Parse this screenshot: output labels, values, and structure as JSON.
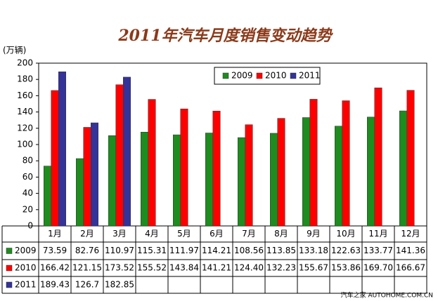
{
  "chart_data": {
    "type": "bar",
    "title": "2011年汽车月度销售变动趋势",
    "y_label": "(万辆)",
    "categories": [
      "1月",
      "2月",
      "3月",
      "4月",
      "5月",
      "6月",
      "7月",
      "8月",
      "9月",
      "10月",
      "11月",
      "12月"
    ],
    "series": [
      {
        "name": "2009",
        "color": "#1e8c1e",
        "values": [
          73.59,
          82.76,
          110.97,
          115.31,
          111.97,
          114.21,
          108.56,
          113.85,
          133.18,
          122.63,
          133.77,
          141.36
        ],
        "value_labels": [
          "73.59",
          "82.76",
          "110.97",
          "115.31",
          "111.97",
          "114.21",
          "108.56",
          "113.85",
          "133.18",
          "122.63",
          "133.77",
          "141.36"
        ]
      },
      {
        "name": "2010",
        "color": "#ff0000",
        "values": [
          166.42,
          121.15,
          173.52,
          155.52,
          143.84,
          141.21,
          124.4,
          132.23,
          155.67,
          153.86,
          169.7,
          166.67
        ],
        "value_labels": [
          "166.42",
          "121.15",
          "173.52",
          "155.52",
          "143.84",
          "141.21",
          "124.40",
          "132.23",
          "155.67",
          "153.86",
          "169.70",
          "166.67"
        ]
      },
      {
        "name": "2011",
        "color": "#333399",
        "values": [
          189.43,
          126.7,
          182.85,
          null,
          null,
          null,
          null,
          null,
          null,
          null,
          null,
          null
        ],
        "value_labels": [
          "189.43",
          "126.7",
          "182.85",
          null,
          null,
          null,
          null,
          null,
          null,
          null,
          null,
          null
        ]
      }
    ],
    "ylim": [
      0,
      200
    ],
    "yticks": [
      0,
      20,
      40,
      60,
      80,
      100,
      120,
      140,
      160,
      180,
      200
    ],
    "grid": false,
    "legend": "top-center",
    "watermark": "汽车之家 AUTOHOME.COM.CN"
  }
}
